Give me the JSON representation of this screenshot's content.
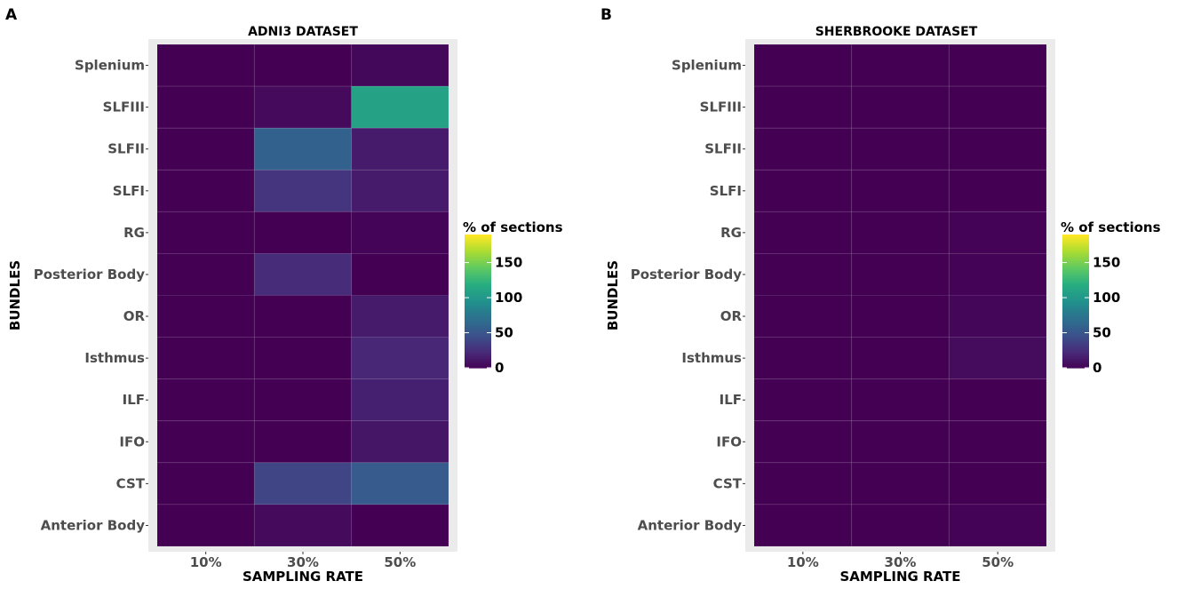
{
  "figure": {
    "panel_labels": [
      "A",
      "B"
    ]
  },
  "chart_data": [
    {
      "type": "heatmap",
      "title": "ADNI3 DATASET",
      "xlabel": "SAMPLING RATE",
      "ylabel": "BUNDLES",
      "x_categories": [
        "10%",
        "30%",
        "50%"
      ],
      "y_categories": [
        "Splenium",
        "SLFIII",
        "SLFII",
        "SLFI",
        "RG",
        "Posterior Body",
        "OR",
        "Isthmus",
        "ILF",
        "IFO",
        "CST",
        "Anterior Body"
      ],
      "values": [
        [
          0,
          0,
          4
        ],
        [
          0,
          5,
          110
        ],
        [
          0,
          60,
          15
        ],
        [
          0,
          30,
          15
        ],
        [
          0,
          0,
          2
        ],
        [
          0,
          25,
          0
        ],
        [
          0,
          0,
          15
        ],
        [
          0,
          0,
          22
        ],
        [
          0,
          0,
          18
        ],
        [
          0,
          0,
          12
        ],
        [
          0,
          40,
          55
        ],
        [
          0,
          5,
          0
        ]
      ],
      "legend": {
        "title": "% of sections",
        "ticks": [
          0,
          50,
          100,
          150
        ],
        "range": [
          0,
          190
        ]
      }
    },
    {
      "type": "heatmap",
      "title": "SHERBROOKE DATASET",
      "xlabel": "SAMPLING RATE",
      "ylabel": "BUNDLES",
      "x_categories": [
        "10%",
        "30%",
        "50%"
      ],
      "y_categories": [
        "Splenium",
        "SLFIII",
        "SLFII",
        "SLFI",
        "RG",
        "Posterior Body",
        "OR",
        "Isthmus",
        "ILF",
        "IFO",
        "CST",
        "Anterior Body"
      ],
      "values": [
        [
          0,
          0,
          0
        ],
        [
          0,
          0,
          0
        ],
        [
          0,
          0,
          0
        ],
        [
          0,
          0,
          0
        ],
        [
          0,
          0,
          1
        ],
        [
          0,
          0,
          1
        ],
        [
          0,
          0,
          3
        ],
        [
          0,
          0,
          6
        ],
        [
          0,
          0,
          0
        ],
        [
          0,
          0,
          0
        ],
        [
          0,
          0,
          0
        ],
        [
          0,
          0,
          1
        ]
      ],
      "legend": {
        "title": "% of sections",
        "ticks": [
          0,
          50,
          100,
          150
        ],
        "range": [
          0,
          190
        ]
      }
    }
  ]
}
